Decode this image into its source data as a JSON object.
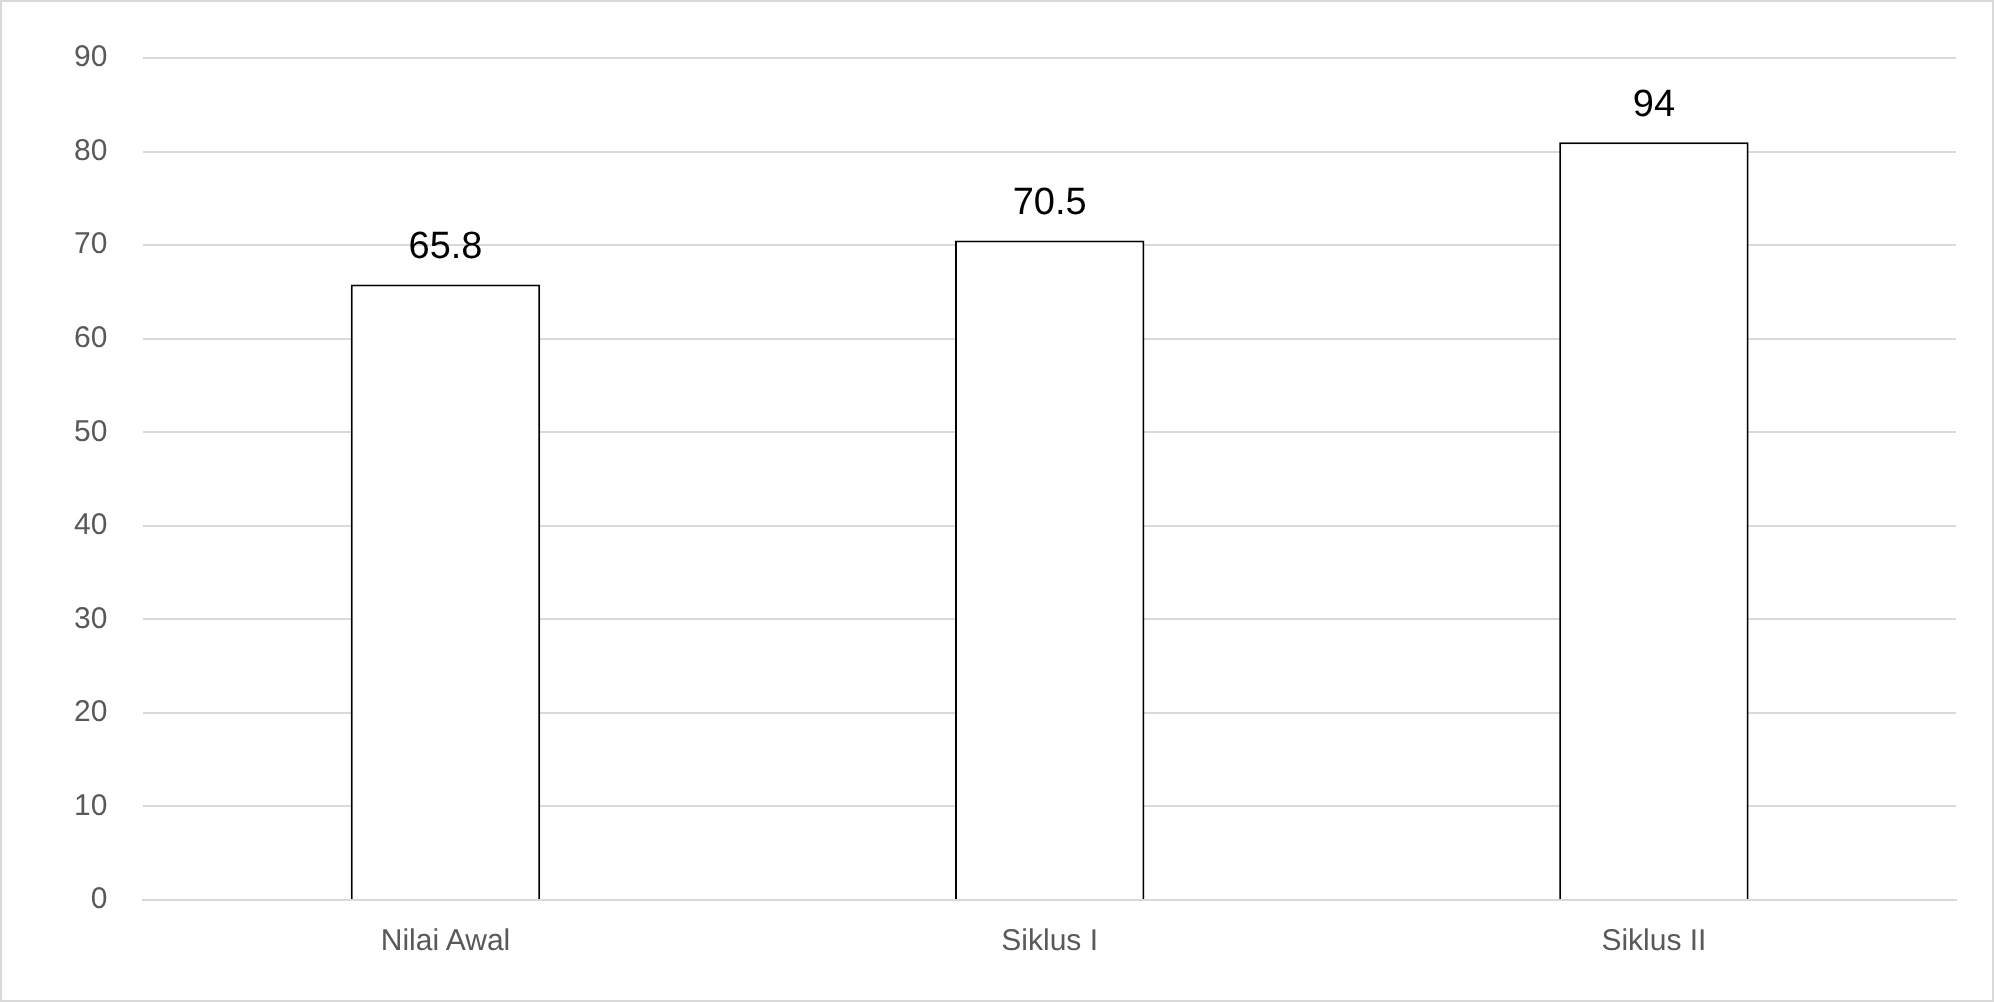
{
  "chart_data": {
    "type": "bar",
    "categories": [
      "Nilai Awal",
      "Siklus I",
      "Siklus II"
    ],
    "values": [
      65.8,
      70.5,
      81
    ],
    "value_labels": [
      "65.8",
      "70.5",
      null
    ],
    "annotations": [
      {
        "text": "94",
        "x": "Siklus II",
        "y": 81
      }
    ],
    "color": "#ffffff",
    "ylim": [
      0,
      90
    ],
    "yticks": [
      0,
      10,
      20,
      30,
      40,
      50,
      60,
      70,
      80,
      90
    ],
    "grid": "y",
    "legend": false
  }
}
